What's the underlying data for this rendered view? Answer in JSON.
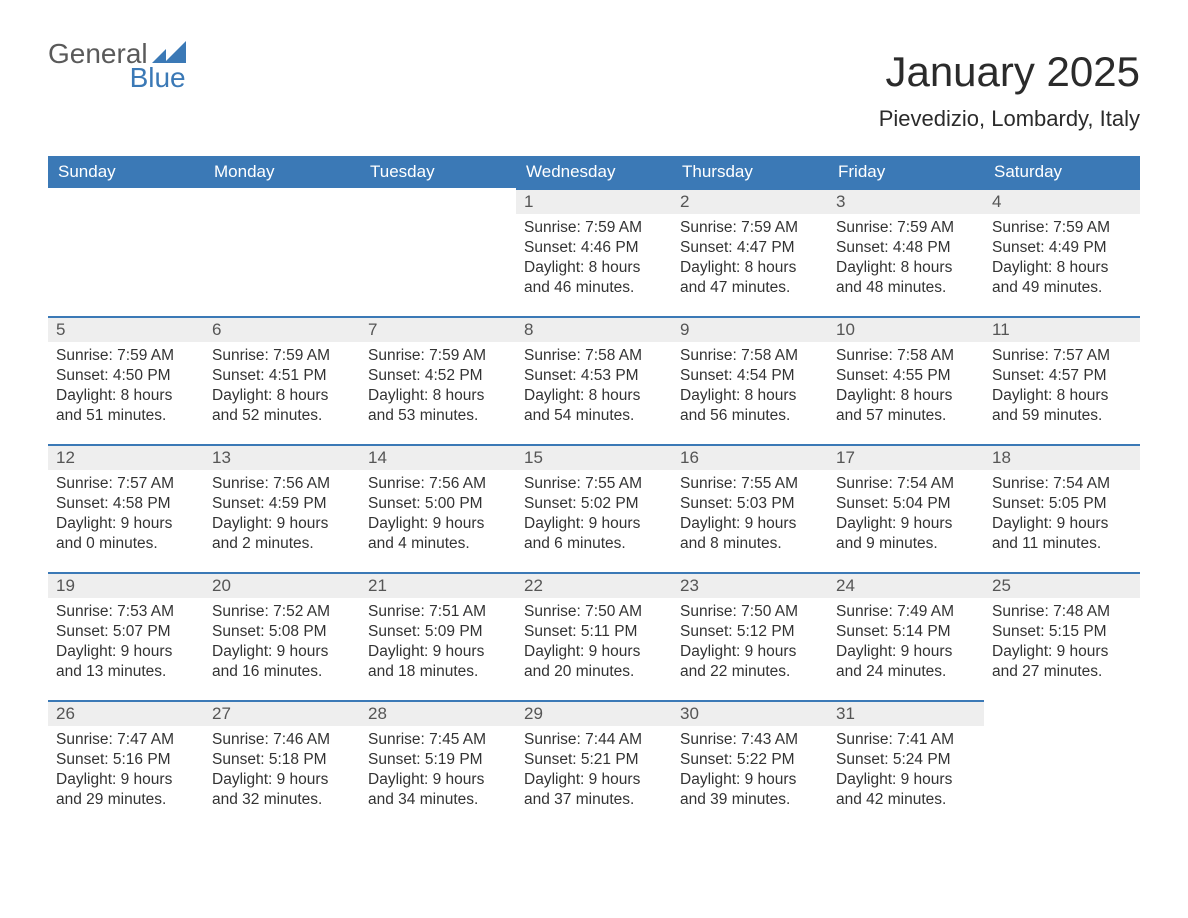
{
  "brand": {
    "line1": "General",
    "line2": "Blue"
  },
  "title": "January 2025",
  "location": "Pievedizio, Lombardy, Italy",
  "colors": {
    "header_bg": "#3b79b6",
    "header_text": "#ffffff",
    "day_num_bg": "#eeeeee",
    "day_border": "#3b79b6",
    "body_text": "#333333",
    "page_bg": "#ffffff",
    "logo_gray": "#5a5a5a",
    "logo_blue": "#3b79b6"
  },
  "fonts": {
    "title_size_pt": 32,
    "location_size_pt": 17,
    "header_size_pt": 13,
    "body_size_pt": 12
  },
  "day_headers": [
    "Sunday",
    "Monday",
    "Tuesday",
    "Wednesday",
    "Thursday",
    "Friday",
    "Saturday"
  ],
  "weeks": [
    [
      null,
      null,
      null,
      {
        "n": "1",
        "sunrise": "7:59 AM",
        "sunset": "4:46 PM",
        "dl_h": "8",
        "dl_m": "46"
      },
      {
        "n": "2",
        "sunrise": "7:59 AM",
        "sunset": "4:47 PM",
        "dl_h": "8",
        "dl_m": "47"
      },
      {
        "n": "3",
        "sunrise": "7:59 AM",
        "sunset": "4:48 PM",
        "dl_h": "8",
        "dl_m": "48"
      },
      {
        "n": "4",
        "sunrise": "7:59 AM",
        "sunset": "4:49 PM",
        "dl_h": "8",
        "dl_m": "49"
      }
    ],
    [
      {
        "n": "5",
        "sunrise": "7:59 AM",
        "sunset": "4:50 PM",
        "dl_h": "8",
        "dl_m": "51"
      },
      {
        "n": "6",
        "sunrise": "7:59 AM",
        "sunset": "4:51 PM",
        "dl_h": "8",
        "dl_m": "52"
      },
      {
        "n": "7",
        "sunrise": "7:59 AM",
        "sunset": "4:52 PM",
        "dl_h": "8",
        "dl_m": "53"
      },
      {
        "n": "8",
        "sunrise": "7:58 AM",
        "sunset": "4:53 PM",
        "dl_h": "8",
        "dl_m": "54"
      },
      {
        "n": "9",
        "sunrise": "7:58 AM",
        "sunset": "4:54 PM",
        "dl_h": "8",
        "dl_m": "56"
      },
      {
        "n": "10",
        "sunrise": "7:58 AM",
        "sunset": "4:55 PM",
        "dl_h": "8",
        "dl_m": "57"
      },
      {
        "n": "11",
        "sunrise": "7:57 AM",
        "sunset": "4:57 PM",
        "dl_h": "8",
        "dl_m": "59"
      }
    ],
    [
      {
        "n": "12",
        "sunrise": "7:57 AM",
        "sunset": "4:58 PM",
        "dl_h": "9",
        "dl_m": "0"
      },
      {
        "n": "13",
        "sunrise": "7:56 AM",
        "sunset": "4:59 PM",
        "dl_h": "9",
        "dl_m": "2"
      },
      {
        "n": "14",
        "sunrise": "7:56 AM",
        "sunset": "5:00 PM",
        "dl_h": "9",
        "dl_m": "4"
      },
      {
        "n": "15",
        "sunrise": "7:55 AM",
        "sunset": "5:02 PM",
        "dl_h": "9",
        "dl_m": "6"
      },
      {
        "n": "16",
        "sunrise": "7:55 AM",
        "sunset": "5:03 PM",
        "dl_h": "9",
        "dl_m": "8"
      },
      {
        "n": "17",
        "sunrise": "7:54 AM",
        "sunset": "5:04 PM",
        "dl_h": "9",
        "dl_m": "9"
      },
      {
        "n": "18",
        "sunrise": "7:54 AM",
        "sunset": "5:05 PM",
        "dl_h": "9",
        "dl_m": "11"
      }
    ],
    [
      {
        "n": "19",
        "sunrise": "7:53 AM",
        "sunset": "5:07 PM",
        "dl_h": "9",
        "dl_m": "13"
      },
      {
        "n": "20",
        "sunrise": "7:52 AM",
        "sunset": "5:08 PM",
        "dl_h": "9",
        "dl_m": "16"
      },
      {
        "n": "21",
        "sunrise": "7:51 AM",
        "sunset": "5:09 PM",
        "dl_h": "9",
        "dl_m": "18"
      },
      {
        "n": "22",
        "sunrise": "7:50 AM",
        "sunset": "5:11 PM",
        "dl_h": "9",
        "dl_m": "20"
      },
      {
        "n": "23",
        "sunrise": "7:50 AM",
        "sunset": "5:12 PM",
        "dl_h": "9",
        "dl_m": "22"
      },
      {
        "n": "24",
        "sunrise": "7:49 AM",
        "sunset": "5:14 PM",
        "dl_h": "9",
        "dl_m": "24"
      },
      {
        "n": "25",
        "sunrise": "7:48 AM",
        "sunset": "5:15 PM",
        "dl_h": "9",
        "dl_m": "27"
      }
    ],
    [
      {
        "n": "26",
        "sunrise": "7:47 AM",
        "sunset": "5:16 PM",
        "dl_h": "9",
        "dl_m": "29"
      },
      {
        "n": "27",
        "sunrise": "7:46 AM",
        "sunset": "5:18 PM",
        "dl_h": "9",
        "dl_m": "32"
      },
      {
        "n": "28",
        "sunrise": "7:45 AM",
        "sunset": "5:19 PM",
        "dl_h": "9",
        "dl_m": "34"
      },
      {
        "n": "29",
        "sunrise": "7:44 AM",
        "sunset": "5:21 PM",
        "dl_h": "9",
        "dl_m": "37"
      },
      {
        "n": "30",
        "sunrise": "7:43 AM",
        "sunset": "5:22 PM",
        "dl_h": "9",
        "dl_m": "39"
      },
      {
        "n": "31",
        "sunrise": "7:41 AM",
        "sunset": "5:24 PM",
        "dl_h": "9",
        "dl_m": "42"
      },
      null
    ]
  ],
  "labels": {
    "sunrise": "Sunrise: ",
    "sunset": "Sunset: ",
    "daylight_prefix": "Daylight: ",
    "hours_word": " hours",
    "and_word": "and ",
    "minutes_word": " minutes."
  }
}
